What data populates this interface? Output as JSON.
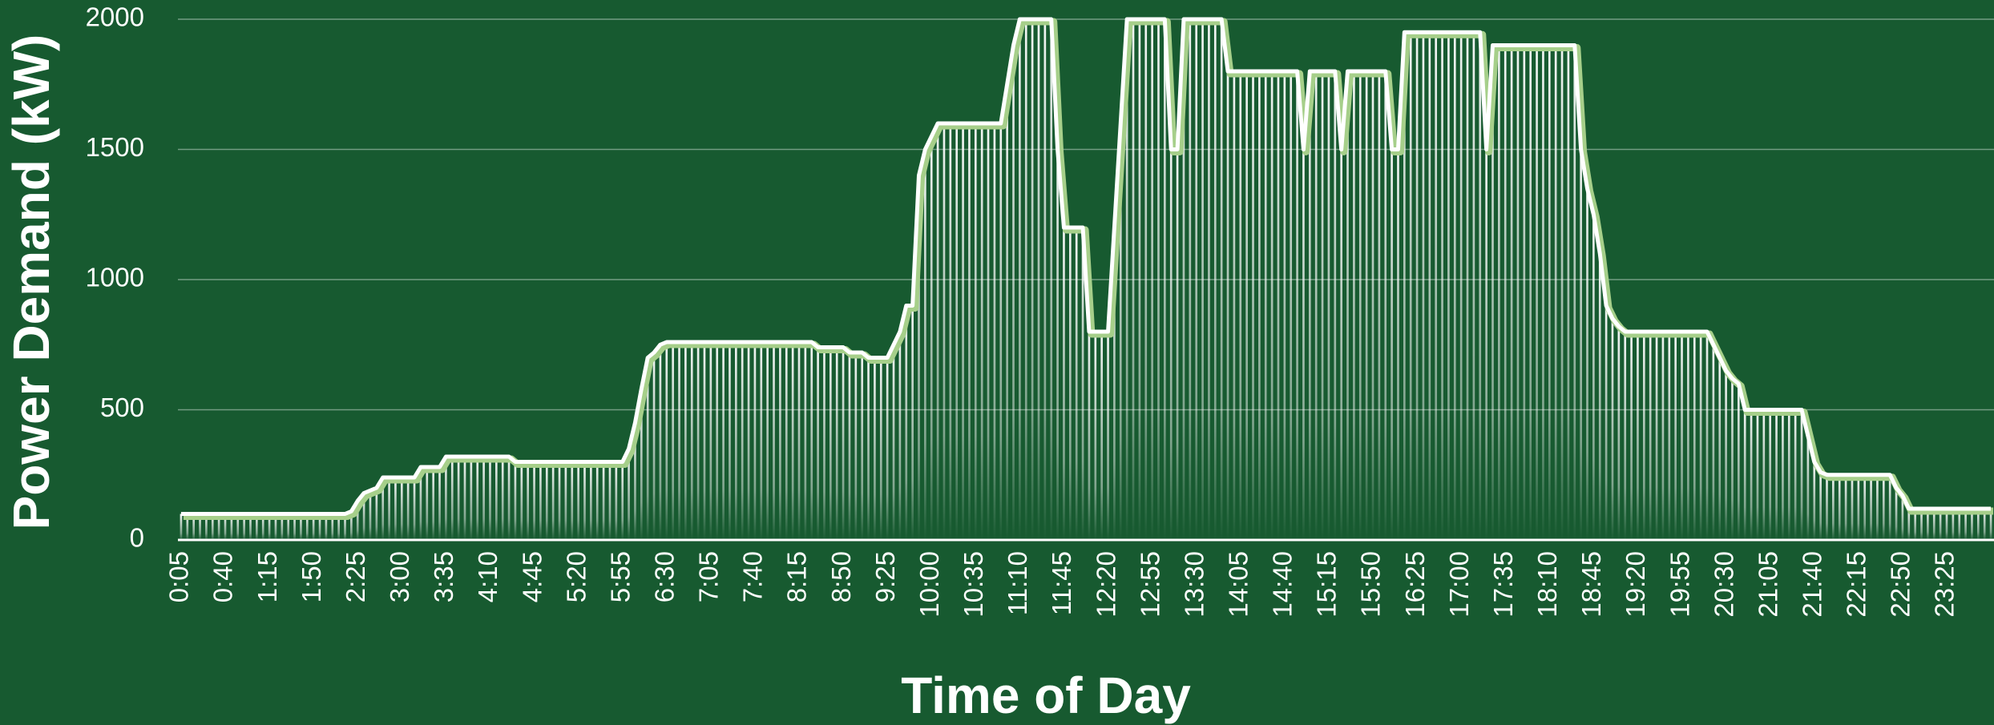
{
  "chart_data": {
    "type": "bar",
    "x_label": "Time of Day",
    "y_label": "Power Demand (kW)",
    "color": "#ffffff",
    "background": "#175a30",
    "grid": true,
    "ylim": [
      0,
      2000
    ],
    "yticks": [
      0,
      500,
      1000,
      1500,
      2000
    ],
    "categories": [
      "0:05",
      null,
      null,
      null,
      null,
      null,
      null,
      "0:40",
      null,
      null,
      null,
      null,
      null,
      null,
      "1:15",
      null,
      null,
      null,
      null,
      null,
      null,
      "1:50",
      null,
      null,
      null,
      null,
      null,
      null,
      "2:25",
      null,
      null,
      null,
      null,
      null,
      null,
      "3:00",
      null,
      null,
      null,
      null,
      null,
      null,
      "3:35",
      null,
      null,
      null,
      null,
      null,
      null,
      "4:10",
      null,
      null,
      null,
      null,
      null,
      null,
      "4:45",
      null,
      null,
      null,
      null,
      null,
      null,
      "5:20",
      null,
      null,
      null,
      null,
      null,
      null,
      "5:55",
      null,
      null,
      null,
      null,
      null,
      null,
      "6:30",
      null,
      null,
      null,
      null,
      null,
      null,
      "7:05",
      null,
      null,
      null,
      null,
      null,
      null,
      "7:40",
      null,
      null,
      null,
      null,
      null,
      null,
      "8:15",
      null,
      null,
      null,
      null,
      null,
      null,
      "8:50",
      null,
      null,
      null,
      null,
      null,
      null,
      "9:25",
      null,
      null,
      null,
      null,
      null,
      null,
      "10:00",
      null,
      null,
      null,
      null,
      null,
      null,
      "10:35",
      null,
      null,
      null,
      null,
      null,
      null,
      "11:10",
      null,
      null,
      null,
      null,
      null,
      null,
      "11:45",
      null,
      null,
      null,
      null,
      null,
      null,
      "12:20",
      null,
      null,
      null,
      null,
      null,
      null,
      "12:55",
      null,
      null,
      null,
      null,
      null,
      null,
      "13:30",
      null,
      null,
      null,
      null,
      null,
      null,
      "14:05",
      null,
      null,
      null,
      null,
      null,
      null,
      "14:40",
      null,
      null,
      null,
      null,
      null,
      null,
      "15:15",
      null,
      null,
      null,
      null,
      null,
      null,
      "15:50",
      null,
      null,
      null,
      null,
      null,
      null,
      "16:25",
      null,
      null,
      null,
      null,
      null,
      null,
      "17:00",
      null,
      null,
      null,
      null,
      null,
      null,
      "17:35",
      null,
      null,
      null,
      null,
      null,
      null,
      "18:10",
      null,
      null,
      null,
      null,
      null,
      null,
      "18:45",
      null,
      null,
      null,
      null,
      null,
      null,
      "19:20",
      null,
      null,
      null,
      null,
      null,
      null,
      "19:55",
      null,
      null,
      null,
      null,
      null,
      null,
      "20:30",
      null,
      null,
      null,
      null,
      null,
      null,
      "21:05",
      null,
      null,
      null,
      null,
      null,
      null,
      "21:40",
      null,
      null,
      null,
      null,
      null,
      null,
      "22:15",
      null,
      null,
      null,
      null,
      null,
      null,
      "22:50",
      null,
      null,
      null,
      null,
      null,
      null,
      "23:25",
      null,
      null,
      null,
      null,
      null,
      null,
      null
    ],
    "values": [
      100,
      100,
      100,
      100,
      100,
      100,
      100,
      100,
      100,
      100,
      100,
      100,
      100,
      100,
      100,
      100,
      100,
      100,
      100,
      100,
      100,
      100,
      100,
      100,
      100,
      100,
      100,
      110,
      150,
      180,
      190,
      200,
      240,
      240,
      240,
      240,
      240,
      240,
      280,
      280,
      280,
      280,
      320,
      320,
      320,
      320,
      320,
      320,
      320,
      320,
      320,
      320,
      320,
      300,
      300,
      300,
      300,
      300,
      300,
      300,
      300,
      300,
      300,
      300,
      300,
      300,
      300,
      300,
      300,
      300,
      300,
      350,
      450,
      580,
      700,
      720,
      750,
      760,
      760,
      760,
      760,
      760,
      760,
      760,
      760,
      760,
      760,
      760,
      760,
      760,
      760,
      760,
      760,
      760,
      760,
      760,
      760,
      760,
      760,
      760,
      760,
      740,
      740,
      740,
      740,
      740,
      720,
      720,
      720,
      700,
      700,
      700,
      700,
      750,
      800,
      900,
      900,
      1400,
      1500,
      1550,
      1600,
      1600,
      1600,
      1600,
      1600,
      1600,
      1600,
      1600,
      1600,
      1600,
      1600,
      1750,
      1900,
      2000,
      2000,
      2000,
      2000,
      2000,
      2000,
      1500,
      1200,
      1200,
      1200,
      1200,
      800,
      800,
      800,
      800,
      1200,
      1600,
      2000,
      2000,
      2000,
      2000,
      2000,
      2000,
      2000,
      1500,
      1500,
      2000,
      2000,
      2000,
      2000,
      2000,
      2000,
      2000,
      1800,
      1800,
      1800,
      1800,
      1800,
      1800,
      1800,
      1800,
      1800,
      1800,
      1800,
      1800,
      1500,
      1800,
      1800,
      1800,
      1800,
      1800,
      1500,
      1800,
      1800,
      1800,
      1800,
      1800,
      1800,
      1800,
      1500,
      1500,
      1950,
      1950,
      1950,
      1950,
      1950,
      1950,
      1950,
      1950,
      1950,
      1950,
      1950,
      1950,
      1950,
      1500,
      1900,
      1900,
      1900,
      1900,
      1900,
      1900,
      1900,
      1900,
      1900,
      1900,
      1900,
      1900,
      1900,
      1900,
      1500,
      1350,
      1250,
      1100,
      900,
      850,
      820,
      800,
      800,
      800,
      800,
      800,
      800,
      800,
      800,
      800,
      800,
      800,
      800,
      800,
      800,
      750,
      700,
      650,
      620,
      600,
      500,
      500,
      500,
      500,
      500,
      500,
      500,
      500,
      500,
      500,
      400,
      300,
      260,
      250,
      250,
      250,
      250,
      250,
      250,
      250,
      250,
      250,
      250,
      250,
      200,
      170,
      120,
      120,
      120,
      120,
      120,
      120,
      120,
      120,
      120,
      120,
      120,
      120,
      120,
      120
    ]
  }
}
